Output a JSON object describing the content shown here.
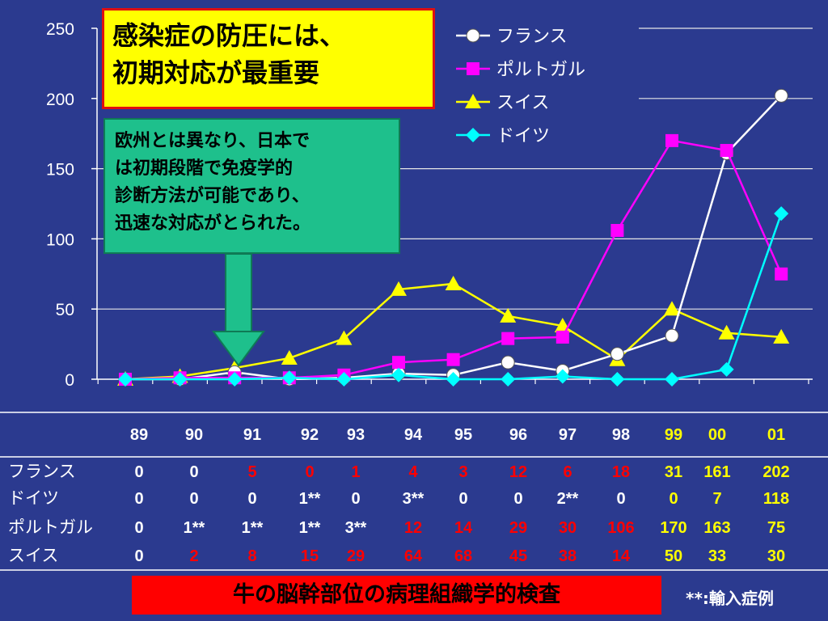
{
  "title_box": {
    "line1": "感染症の防圧には、",
    "line2": "初期対応が最重要"
  },
  "note_box": {
    "lines": [
      "欧州とは異なり、日本で",
      "は初期段階で免疫学的",
      "診断方法が可能であり、",
      "迅速な対応がとられた。"
    ]
  },
  "bottom_label": "牛の脳幹部位の病理組織学的検査",
  "footnote": "**:輸入症例",
  "colors": {
    "background": "#2b3a8f",
    "france": "#ffffff",
    "portugal": "#ff00ff",
    "swiss": "#ffff00",
    "germany": "#00ffff",
    "highlight_years": "#ffff00",
    "red_values": "#ff0000"
  },
  "chart_data": {
    "type": "line",
    "categories": [
      "89",
      "90",
      "91",
      "92",
      "93",
      "94",
      "95",
      "96",
      "97",
      "98",
      "99",
      "00",
      "01"
    ],
    "ylim": [
      0,
      250
    ],
    "yticks": [
      0,
      50,
      100,
      150,
      200,
      250
    ],
    "legend_position": "top-right",
    "grid": "horizontal",
    "series": [
      {
        "name": "フランス",
        "color": "#ffffff",
        "marker": "circle",
        "values": [
          0,
          0,
          5,
          0,
          1,
          4,
          3,
          12,
          6,
          18,
          31,
          161,
          202
        ]
      },
      {
        "name": "ポルトガル",
        "color": "#ff00ff",
        "marker": "square",
        "values": [
          0,
          1,
          1,
          1,
          3,
          12,
          14,
          29,
          30,
          106,
          170,
          163,
          75
        ]
      },
      {
        "name": "スイス",
        "color": "#ffff00",
        "marker": "triangle",
        "values": [
          0,
          2,
          8,
          15,
          29,
          64,
          68,
          45,
          38,
          14,
          50,
          33,
          30
        ]
      },
      {
        "name": "ドイツ",
        "color": "#00ffff",
        "marker": "diamond",
        "values": [
          0,
          0,
          0,
          1,
          0,
          3,
          0,
          0,
          2,
          0,
          0,
          7,
          118
        ]
      }
    ]
  },
  "table": {
    "year_labels": [
      "89",
      "90",
      "91",
      "92",
      "93",
      "94",
      "95",
      "96",
      "97",
      "98",
      "99",
      "00",
      "01"
    ],
    "rows": [
      {
        "name": "フランス",
        "cells": [
          {
            "text": "0",
            "c": "w"
          },
          {
            "text": "0",
            "c": "w"
          },
          {
            "text": "5",
            "c": "r"
          },
          {
            "text": "0",
            "c": "r"
          },
          {
            "text": "1",
            "c": "r"
          },
          {
            "text": "4",
            "c": "r"
          },
          {
            "text": "3",
            "c": "r"
          },
          {
            "text": "12",
            "c": "r"
          },
          {
            "text": "6",
            "c": "r"
          },
          {
            "text": "18",
            "c": "r"
          },
          {
            "text": "31",
            "c": "y"
          },
          {
            "text": "161",
            "c": "y"
          },
          {
            "text": "202",
            "c": "y"
          }
        ]
      },
      {
        "name": "ドイツ",
        "cells": [
          {
            "text": "0",
            "c": "w"
          },
          {
            "text": "0",
            "c": "w"
          },
          {
            "text": "0",
            "c": "w"
          },
          {
            "text": "1**",
            "c": "w"
          },
          {
            "text": "0",
            "c": "w"
          },
          {
            "text": "3**",
            "c": "w"
          },
          {
            "text": "0",
            "c": "w"
          },
          {
            "text": "0",
            "c": "w"
          },
          {
            "text": "2**",
            "c": "w"
          },
          {
            "text": "0",
            "c": "w"
          },
          {
            "text": "0",
            "c": "y"
          },
          {
            "text": "7",
            "c": "y"
          },
          {
            "text": "118",
            "c": "y"
          }
        ]
      },
      {
        "name": "ポルトガル",
        "cells": [
          {
            "text": "0",
            "c": "w"
          },
          {
            "text": "1**",
            "c": "w"
          },
          {
            "text": "1**",
            "c": "w"
          },
          {
            "text": "1**",
            "c": "w"
          },
          {
            "text": "3**",
            "c": "w"
          },
          {
            "text": "12",
            "c": "r"
          },
          {
            "text": "14",
            "c": "r"
          },
          {
            "text": "29",
            "c": "r"
          },
          {
            "text": "30",
            "c": "r"
          },
          {
            "text": "106",
            "c": "r"
          },
          {
            "text": "170",
            "c": "y"
          },
          {
            "text": "163",
            "c": "y"
          },
          {
            "text": "75",
            "c": "y"
          }
        ]
      },
      {
        "name": "スイス",
        "cells": [
          {
            "text": "0",
            "c": "w"
          },
          {
            "text": "2",
            "c": "r"
          },
          {
            "text": "8",
            "c": "r"
          },
          {
            "text": "15",
            "c": "r"
          },
          {
            "text": "29",
            "c": "r"
          },
          {
            "text": "64",
            "c": "r"
          },
          {
            "text": "68",
            "c": "r"
          },
          {
            "text": "45",
            "c": "r"
          },
          {
            "text": "38",
            "c": "r"
          },
          {
            "text": "14",
            "c": "r"
          },
          {
            "text": "50",
            "c": "y"
          },
          {
            "text": "33",
            "c": "y"
          },
          {
            "text": "30",
            "c": "y"
          }
        ]
      }
    ]
  }
}
